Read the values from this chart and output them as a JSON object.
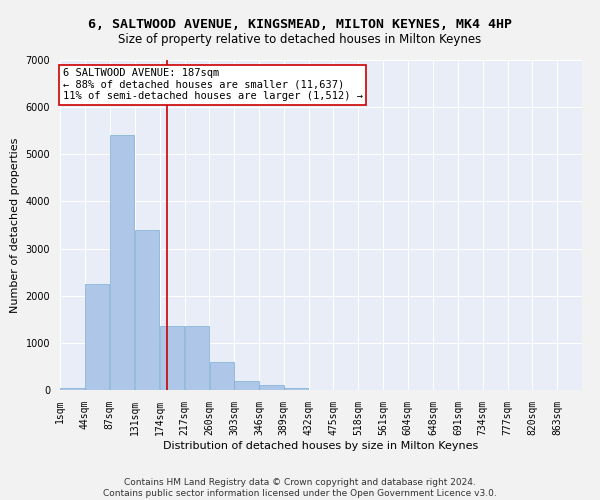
{
  "title1": "6, SALTWOOD AVENUE, KINGSMEAD, MILTON KEYNES, MK4 4HP",
  "title2": "Size of property relative to detached houses in Milton Keynes",
  "xlabel": "Distribution of detached houses by size in Milton Keynes",
  "ylabel": "Number of detached properties",
  "footer1": "Contains HM Land Registry data © Crown copyright and database right 2024.",
  "footer2": "Contains public sector information licensed under the Open Government Licence v3.0.",
  "annotation_line1": "6 SALTWOOD AVENUE: 187sqm",
  "annotation_line2": "← 88% of detached houses are smaller (11,637)",
  "annotation_line3": "11% of semi-detached houses are larger (1,512) →",
  "categories": [
    "1sqm",
    "44sqm",
    "87sqm",
    "131sqm",
    "174sqm",
    "217sqm",
    "260sqm",
    "303sqm",
    "346sqm",
    "389sqm",
    "432sqm",
    "475sqm",
    "518sqm",
    "561sqm",
    "604sqm",
    "648sqm",
    "691sqm",
    "734sqm",
    "777sqm",
    "820sqm",
    "863sqm"
  ],
  "bar_starts": [
    1,
    44,
    87,
    131,
    174,
    217,
    260,
    303,
    346,
    389,
    432,
    475,
    518,
    561,
    604,
    648,
    691,
    734,
    777,
    820,
    863
  ],
  "values": [
    50,
    2250,
    5400,
    3400,
    1350,
    1350,
    600,
    200,
    100,
    50,
    0,
    0,
    0,
    0,
    0,
    0,
    0,
    0,
    0,
    0,
    0
  ],
  "bar_color": "#aec6e8",
  "bar_edge_color": "#7aafd4",
  "vline_color": "#cc0000",
  "vline_x": 187,
  "annotation_box_color": "#ffffff",
  "annotation_box_edge": "#cc0000",
  "background_color": "#e8edf8",
  "grid_color": "#ffffff",
  "fig_bg_color": "#f2f2f2",
  "ylim": [
    0,
    7000
  ],
  "xlim": [
    1,
    906
  ],
  "yticks": [
    0,
    1000,
    2000,
    3000,
    4000,
    5000,
    6000,
    7000
  ],
  "title1_fontsize": 9.5,
  "title2_fontsize": 8.5,
  "xlabel_fontsize": 8,
  "ylabel_fontsize": 8,
  "tick_fontsize": 7,
  "annotation_fontsize": 7.5,
  "footer_fontsize": 6.5
}
